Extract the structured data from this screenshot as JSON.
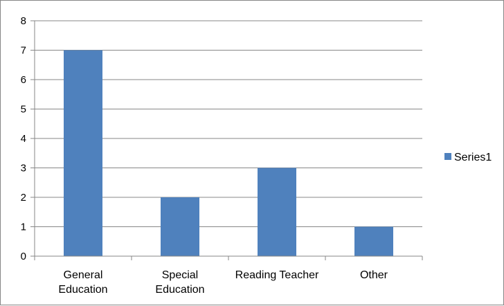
{
  "chart_data": {
    "type": "bar",
    "categories": [
      [
        "General",
        "Education"
      ],
      [
        "Special",
        "Education"
      ],
      [
        "Reading Teacher"
      ],
      [
        "Other"
      ]
    ],
    "series": [
      {
        "name": "Series1",
        "values": [
          7,
          2,
          3,
          1
        ],
        "color": "#4F81BD"
      }
    ],
    "title": "",
    "xlabel": "",
    "ylabel": "",
    "ylim": [
      0,
      8
    ],
    "yticks": [
      "0",
      "1",
      "2",
      "3",
      "4",
      "5",
      "6",
      "7",
      "8"
    ],
    "grid": true,
    "gridColor": "#878787",
    "axisColor": "#878787",
    "legend": {
      "position": "right",
      "entries": [
        "Series1"
      ]
    }
  }
}
